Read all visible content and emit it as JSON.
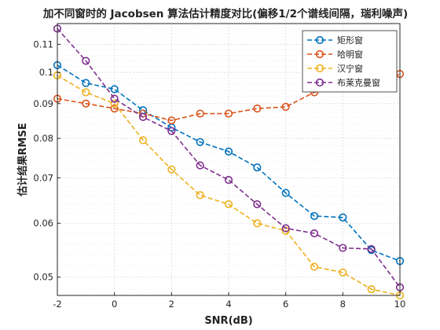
{
  "chart_data": {
    "type": "line",
    "title": "加不同窗时的 Jacobsen 算法估计精度对比(偏移1/2个谱线间隔，瑞利噪声)",
    "xlabel": "SNR(dB)",
    "ylabel": "估计结果RMSE",
    "xlim": [
      -2,
      10
    ],
    "ylim": [
      0.047,
      0.118
    ],
    "yscale": "log",
    "grid": true,
    "legend_position": "top-right",
    "x_ticks": [
      "-2",
      "0",
      "2",
      "4",
      "6",
      "8",
      "10"
    ],
    "y_ticks": [
      "0.05",
      "0.06",
      "0.07",
      "0.08",
      "0.09",
      "0.1",
      "0.11"
    ],
    "x": [
      -2,
      -1,
      0,
      1,
      2,
      3,
      4,
      5,
      6,
      7,
      8,
      9,
      10
    ],
    "series": [
      {
        "name": "矩形窗",
        "color": "#0072BD",
        "values": [
          0.1025,
          0.0965,
          0.0945,
          0.088,
          0.083,
          0.079,
          0.0765,
          0.0725,
          0.0665,
          0.0615,
          0.0612,
          0.0548,
          0.0528
        ]
      },
      {
        "name": "哈明窗",
        "color": "#D95319",
        "values": [
          0.0915,
          0.09,
          0.0885,
          0.087,
          0.085,
          0.087,
          0.087,
          0.0885,
          0.089,
          0.0935,
          0.0955,
          0.096,
          0.0995
        ]
      },
      {
        "name": "汉宁窗",
        "color": "#EDB120",
        "values": [
          0.099,
          0.0935,
          0.09,
          0.0795,
          0.072,
          0.066,
          0.064,
          0.06,
          0.0585,
          0.0518,
          0.0508,
          0.048,
          0.047
        ]
      },
      {
        "name": "布莱克曼窗",
        "color": "#7E2F8E",
        "values": [
          0.116,
          0.104,
          0.0915,
          0.086,
          0.082,
          0.073,
          0.0695,
          0.064,
          0.059,
          0.058,
          0.0552,
          0.055,
          0.0483
        ]
      }
    ]
  }
}
